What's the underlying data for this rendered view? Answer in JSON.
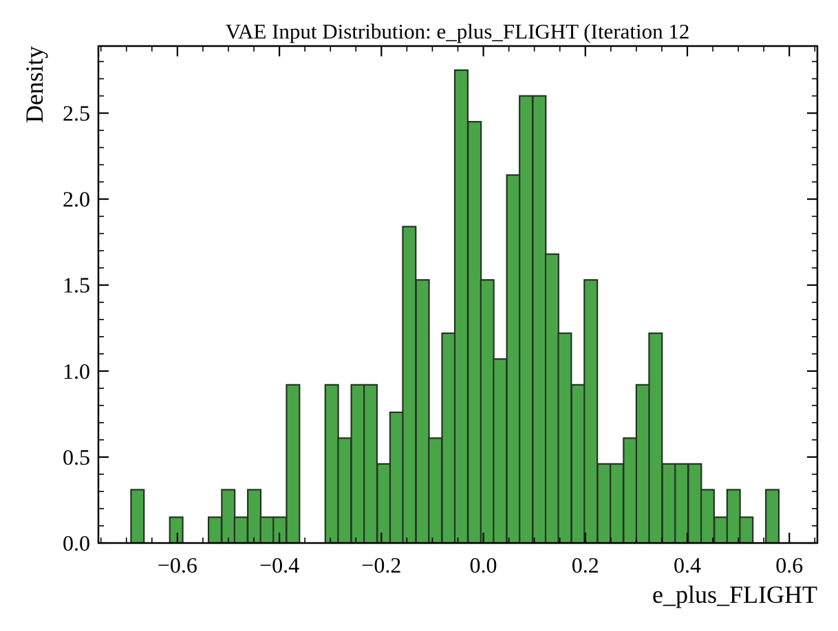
{
  "chart_data": {
    "type": "bar",
    "title": "VAE Input Distribution: e_plus_FLIGHT (Iteration 12",
    "xlabel": "e_plus_FLIGHT",
    "ylabel": "Density",
    "xlim": [
      -0.755,
      0.655
    ],
    "ylim": [
      0,
      2.89
    ],
    "bin_width": 0.0254,
    "x_ticks": [
      {
        "value": -0.6,
        "label": "−0.6"
      },
      {
        "value": -0.4,
        "label": "−0.4"
      },
      {
        "value": -0.2,
        "label": "−0.2"
      },
      {
        "value": 0.0,
        "label": "0.0"
      },
      {
        "value": 0.2,
        "label": "0.2"
      },
      {
        "value": 0.4,
        "label": "0.4"
      },
      {
        "value": 0.6,
        "label": "0.6"
      }
    ],
    "y_ticks": [
      {
        "value": 0.0,
        "label": "0.0"
      },
      {
        "value": 0.5,
        "label": "0.5"
      },
      {
        "value": 1.0,
        "label": "1.0"
      },
      {
        "value": 1.5,
        "label": "1.5"
      },
      {
        "value": 2.0,
        "label": "2.0"
      },
      {
        "value": 2.5,
        "label": "2.5"
      }
    ],
    "bars": [
      {
        "x0": -0.691,
        "value": 0.31
      },
      {
        "x0": -0.615,
        "value": 0.15
      },
      {
        "x0": -0.539,
        "value": 0.15
      },
      {
        "x0": -0.513,
        "value": 0.31
      },
      {
        "x0": -0.488,
        "value": 0.15
      },
      {
        "x0": -0.462,
        "value": 0.31
      },
      {
        "x0": -0.437,
        "value": 0.15
      },
      {
        "x0": -0.412,
        "value": 0.15
      },
      {
        "x0": -0.386,
        "value": 0.92
      },
      {
        "x0": -0.31,
        "value": 0.92
      },
      {
        "x0": -0.285,
        "value": 0.61
      },
      {
        "x0": -0.259,
        "value": 0.92
      },
      {
        "x0": -0.234,
        "value": 0.92
      },
      {
        "x0": -0.208,
        "value": 0.46
      },
      {
        "x0": -0.183,
        "value": 0.76
      },
      {
        "x0": -0.158,
        "value": 1.84
      },
      {
        "x0": -0.132,
        "value": 1.53
      },
      {
        "x0": -0.107,
        "value": 0.61
      },
      {
        "x0": -0.081,
        "value": 1.22
      },
      {
        "x0": -0.056,
        "value": 2.75
      },
      {
        "x0": -0.03,
        "value": 2.45
      },
      {
        "x0": -0.005,
        "value": 1.53
      },
      {
        "x0": 0.02,
        "value": 1.07
      },
      {
        "x0": 0.046,
        "value": 2.14
      },
      {
        "x0": 0.071,
        "value": 2.6
      },
      {
        "x0": 0.097,
        "value": 2.6
      },
      {
        "x0": 0.122,
        "value": 1.68
      },
      {
        "x0": 0.147,
        "value": 1.22
      },
      {
        "x0": 0.173,
        "value": 0.92
      },
      {
        "x0": 0.198,
        "value": 1.53
      },
      {
        "x0": 0.224,
        "value": 0.46
      },
      {
        "x0": 0.249,
        "value": 0.46
      },
      {
        "x0": 0.275,
        "value": 0.61
      },
      {
        "x0": 0.3,
        "value": 0.92
      },
      {
        "x0": 0.325,
        "value": 1.22
      },
      {
        "x0": 0.351,
        "value": 0.46
      },
      {
        "x0": 0.376,
        "value": 0.46
      },
      {
        "x0": 0.402,
        "value": 0.46
      },
      {
        "x0": 0.427,
        "value": 0.31
      },
      {
        "x0": 0.453,
        "value": 0.15
      },
      {
        "x0": 0.478,
        "value": 0.31
      },
      {
        "x0": 0.503,
        "value": 0.15
      },
      {
        "x0": 0.554,
        "value": 0.31
      }
    ],
    "grid": false,
    "legend": "none",
    "colors": {
      "bar_fill": "#4aa548",
      "bar_edge": "#233423",
      "axis": "#000000"
    }
  }
}
